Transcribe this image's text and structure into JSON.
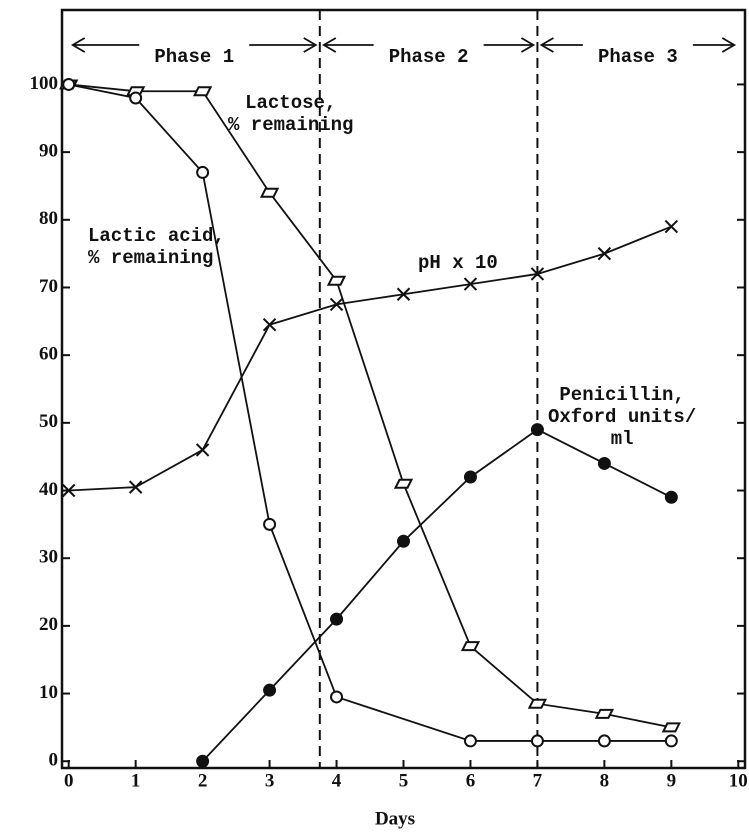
{
  "chart_data": {
    "type": "line",
    "xlabel": "Days",
    "xlim": [
      -0.1,
      10.1
    ],
    "ylim": [
      -1,
      111
    ],
    "xticks": [
      0,
      1,
      2,
      3,
      4,
      5,
      6,
      7,
      8,
      9,
      10
    ],
    "yticks": [
      0,
      10,
      20,
      30,
      40,
      50,
      60,
      70,
      80,
      90,
      100
    ],
    "color": "#111111",
    "phase_dividers": [
      3.75,
      7
    ],
    "phases": [
      {
        "label": "Phase 1",
        "start": 0,
        "end": 3.75
      },
      {
        "label": "Phase 2",
        "start": 3.75,
        "end": 7
      },
      {
        "label": "Phase 3",
        "start": 7,
        "end": 10
      }
    ],
    "series": [
      {
        "name": "Lactose,\n% remaining",
        "marker": "parallelogram",
        "x": [
          0,
          1,
          2,
          3,
          4,
          5,
          6,
          7,
          8,
          9
        ],
        "values": [
          100,
          99,
          99,
          84,
          71,
          41,
          17,
          8.5,
          7,
          5
        ]
      },
      {
        "name": "Lactic acid,\n% remaining",
        "marker": "circle-open",
        "x": [
          0,
          1,
          2,
          3,
          4,
          6,
          7,
          8,
          9
        ],
        "values": [
          100,
          98,
          87,
          35,
          9.5,
          3,
          3,
          3,
          3
        ]
      },
      {
        "name": "pH x 10",
        "marker": "x",
        "x": [
          0,
          1,
          2,
          3,
          4,
          5,
          6,
          7,
          8,
          9
        ],
        "values": [
          40,
          40.5,
          46,
          64.5,
          67.5,
          69,
          70.5,
          72,
          75,
          79
        ]
      },
      {
        "name": "Penicillin,\nOxford units/\nml",
        "marker": "circle-filled",
        "x": [
          2,
          3,
          4,
          5,
          6,
          7,
          8,
          9
        ],
        "values": [
          0,
          10.5,
          21,
          32.5,
          42,
          49,
          44,
          39
        ]
      }
    ]
  }
}
